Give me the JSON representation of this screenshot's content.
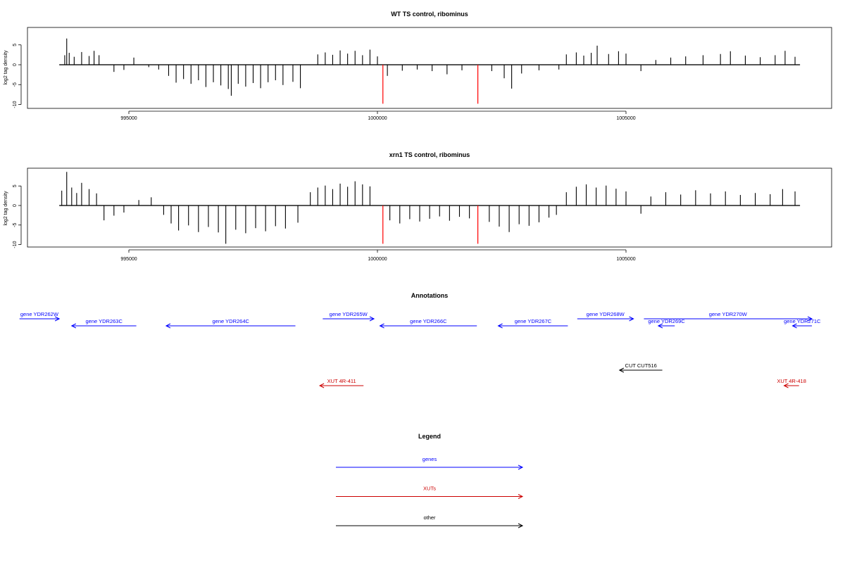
{
  "chart_data": [
    {
      "type": "bar",
      "title": "WT TS control, ribominus",
      "xlabel": "",
      "ylabel": "log2 tag density",
      "xlim": [
        992600,
        1008900
      ],
      "ylim": [
        -10,
        9.5
      ],
      "x_ticks": [
        995000,
        1000000,
        1005000
      ],
      "x_tick_labels": [
        "995000",
        "1000000",
        "1005000"
      ],
      "y_ticks": [
        -10,
        -5,
        0,
        5
      ],
      "y_tick_labels": [
        "-10",
        "-5",
        "0",
        "5"
      ],
      "grid": false,
      "legend": "none",
      "baseline_range": [
        993600,
        1008500
      ],
      "series": [
        {
          "color": "#000000",
          "values": [
            [
              993710,
              2.4
            ],
            [
              993750,
              6.6
            ],
            [
              993800,
              3.0
            ],
            [
              993900,
              2.0
            ],
            [
              994050,
              3.2
            ],
            [
              994200,
              2.2
            ],
            [
              994300,
              3.5
            ],
            [
              994400,
              2.4
            ],
            [
              994700,
              -1.8
            ],
            [
              994900,
              -1.3
            ],
            [
              995100,
              1.8
            ],
            [
              995400,
              -0.6
            ],
            [
              995600,
              -1.2
            ],
            [
              995800,
              -2.8
            ],
            [
              995950,
              -4.5
            ],
            [
              996100,
              -3.6
            ],
            [
              996250,
              -4.8
            ],
            [
              996400,
              -3.9
            ],
            [
              996550,
              -5.6
            ],
            [
              996700,
              -4.4
            ],
            [
              996850,
              -5.2
            ],
            [
              997000,
              -6.1
            ],
            [
              997060,
              -7.8
            ],
            [
              997200,
              -4.8
            ],
            [
              997350,
              -5.5
            ],
            [
              997500,
              -4.6
            ],
            [
              997650,
              -5.9
            ],
            [
              997800,
              -4.4
            ],
            [
              997950,
              -3.9
            ],
            [
              998100,
              -5.1
            ],
            [
              998300,
              -4.3
            ],
            [
              998450,
              -5.9
            ],
            [
              998800,
              2.6
            ],
            [
              998950,
              3.1
            ],
            [
              999100,
              2.5
            ],
            [
              999250,
              3.6
            ],
            [
              999400,
              2.8
            ],
            [
              999550,
              3.5
            ],
            [
              999700,
              2.4
            ],
            [
              999850,
              3.8
            ],
            [
              1000000,
              2.1
            ],
            [
              1000200,
              -2.8
            ],
            [
              1000500,
              -1.5
            ],
            [
              1000800,
              -1.2
            ],
            [
              1001100,
              -1.6
            ],
            [
              1001400,
              -2.4
            ],
            [
              1001700,
              -1.4
            ],
            [
              1002300,
              -1.6
            ],
            [
              1002550,
              -3.4
            ],
            [
              1002700,
              -6.0
            ],
            [
              1002900,
              -2.2
            ],
            [
              1003250,
              -1.4
            ],
            [
              1003650,
              -1.2
            ],
            [
              1003800,
              2.6
            ],
            [
              1004000,
              3.1
            ],
            [
              1004150,
              2.3
            ],
            [
              1004300,
              3.0
            ],
            [
              1004420,
              4.8
            ],
            [
              1004650,
              2.7
            ],
            [
              1004850,
              3.4
            ],
            [
              1005000,
              2.8
            ],
            [
              1005300,
              -1.6
            ],
            [
              1005600,
              1.2
            ],
            [
              1005900,
              1.8
            ],
            [
              1006200,
              2.1
            ],
            [
              1006550,
              2.4
            ],
            [
              1006900,
              2.7
            ],
            [
              1007100,
              3.4
            ],
            [
              1007400,
              2.3
            ],
            [
              1007700,
              1.9
            ],
            [
              1008000,
              2.4
            ],
            [
              1008200,
              3.5
            ],
            [
              1008400,
              2.0
            ]
          ]
        },
        {
          "color": "#ff0000",
          "values": [
            [
              1000110,
              -9.8
            ],
            [
              1002020,
              -9.8
            ]
          ]
        }
      ]
    },
    {
      "type": "bar",
      "title": "xrn1 TS control, ribominus",
      "xlabel": "",
      "ylabel": "log2 tag density",
      "xlim": [
        992600,
        1008900
      ],
      "ylim": [
        -10,
        9.5
      ],
      "x_ticks": [
        995000,
        1000000,
        1005000
      ],
      "x_tick_labels": [
        "995000",
        "1000000",
        "1005000"
      ],
      "y_ticks": [
        -10,
        -5,
        0,
        5
      ],
      "y_tick_labels": [
        "-10",
        "-5",
        "0",
        "5"
      ],
      "grid": false,
      "legend": "none",
      "baseline_range": [
        993600,
        1008500
      ],
      "series": [
        {
          "color": "#000000",
          "values": [
            [
              993650,
              3.8
            ],
            [
              993750,
              8.6
            ],
            [
              993850,
              4.6
            ],
            [
              993950,
              3.2
            ],
            [
              994050,
              5.8
            ],
            [
              994200,
              4.2
            ],
            [
              994350,
              3.1
            ],
            [
              994500,
              -3.8
            ],
            [
              994700,
              -2.6
            ],
            [
              994900,
              -1.8
            ],
            [
              995200,
              1.4
            ],
            [
              995450,
              2.1
            ],
            [
              995700,
              -2.4
            ],
            [
              995850,
              -4.6
            ],
            [
              996000,
              -6.4
            ],
            [
              996200,
              -5.1
            ],
            [
              996400,
              -6.8
            ],
            [
              996600,
              -5.5
            ],
            [
              996800,
              -6.9
            ],
            [
              996950,
              -9.8
            ],
            [
              997150,
              -6.2
            ],
            [
              997350,
              -7.1
            ],
            [
              997550,
              -5.8
            ],
            [
              997750,
              -6.6
            ],
            [
              997950,
              -5.3
            ],
            [
              998150,
              -5.9
            ],
            [
              998400,
              -4.4
            ],
            [
              998650,
              3.4
            ],
            [
              998800,
              4.6
            ],
            [
              998950,
              5.1
            ],
            [
              999100,
              4.2
            ],
            [
              999250,
              5.6
            ],
            [
              999400,
              4.8
            ],
            [
              999550,
              6.2
            ],
            [
              999700,
              5.4
            ],
            [
              999850,
              4.9
            ],
            [
              1000250,
              -3.8
            ],
            [
              1000450,
              -4.6
            ],
            [
              1000650,
              -3.5
            ],
            [
              1000850,
              -4.1
            ],
            [
              1001050,
              -3.4
            ],
            [
              1001250,
              -2.8
            ],
            [
              1001450,
              -3.9
            ],
            [
              1001650,
              -2.9
            ],
            [
              1001850,
              -3.3
            ],
            [
              1002250,
              -4.2
            ],
            [
              1002450,
              -5.4
            ],
            [
              1002650,
              -6.8
            ],
            [
              1002850,
              -4.8
            ],
            [
              1003050,
              -5.2
            ],
            [
              1003250,
              -4.3
            ],
            [
              1003450,
              -3.1
            ],
            [
              1003600,
              -2.4
            ],
            [
              1003800,
              3.4
            ],
            [
              1004000,
              4.8
            ],
            [
              1004200,
              5.4
            ],
            [
              1004400,
              4.6
            ],
            [
              1004600,
              5.1
            ],
            [
              1004800,
              4.3
            ],
            [
              1005000,
              3.6
            ],
            [
              1005300,
              -2.1
            ],
            [
              1005500,
              2.3
            ],
            [
              1005800,
              3.4
            ],
            [
              1006100,
              2.8
            ],
            [
              1006400,
              3.9
            ],
            [
              1006700,
              3.1
            ],
            [
              1007000,
              3.6
            ],
            [
              1007300,
              2.7
            ],
            [
              1007600,
              3.2
            ],
            [
              1007900,
              2.9
            ],
            [
              1008150,
              4.2
            ],
            [
              1008400,
              3.6
            ]
          ]
        },
        {
          "color": "#ff0000",
          "values": [
            [
              1000110,
              -9.8
            ],
            [
              1002020,
              -9.8
            ]
          ]
        }
      ]
    }
  ],
  "annotations": {
    "title": "Annotations",
    "items": [
      {
        "label": "gene YDR262W",
        "start": 992800,
        "end": 993600,
        "strand": "+",
        "row": 0,
        "color": "#0000ff"
      },
      {
        "label": "gene YDR263C",
        "start": 993850,
        "end": 995150,
        "strand": "-",
        "row": 1,
        "color": "#0000ff"
      },
      {
        "label": "gene YDR264C",
        "start": 995750,
        "end": 998350,
        "strand": "-",
        "row": 1,
        "color": "#0000ff"
      },
      {
        "label": "gene YDR265W",
        "start": 998900,
        "end": 999930,
        "strand": "+",
        "row": 0,
        "color": "#0000ff"
      },
      {
        "label": "gene YDR266C",
        "start": 1000050,
        "end": 1002000,
        "strand": "-",
        "row": 1,
        "color": "#0000ff"
      },
      {
        "label": "gene YDR267C",
        "start": 1002430,
        "end": 1003830,
        "strand": "-",
        "row": 1,
        "color": "#0000ff"
      },
      {
        "label": "gene YDR268W",
        "start": 1004020,
        "end": 1005150,
        "strand": "+",
        "row": 0,
        "color": "#0000ff"
      },
      {
        "label": "gene YDR269C",
        "start": 1005650,
        "end": 1005980,
        "strand": "-",
        "row": 1,
        "color": "#0000ff"
      },
      {
        "label": "gene YDR270W",
        "start": 1005360,
        "end": 1008740,
        "strand": "+",
        "row": 0,
        "color": "#0000ff"
      },
      {
        "label": "gene YDR271C",
        "start": 1008350,
        "end": 1008740,
        "strand": "-",
        "row": 1,
        "color": "#0000ff"
      },
      {
        "label": "CUT CUT516",
        "start": 1004870,
        "end": 1005730,
        "strand": "-",
        "row": 2,
        "color": "#000000"
      },
      {
        "label": "XUT 4R-411",
        "start": 998840,
        "end": 999720,
        "strand": "-",
        "row": 3,
        "color": "#cc0000"
      },
      {
        "label": "XUT 4R-418",
        "start": 1008180,
        "end": 1008480,
        "strand": "-",
        "row": 3,
        "color": "#cc0000"
      }
    ]
  },
  "legend": {
    "title": "Legend",
    "items": [
      {
        "label": "genes",
        "color": "#0000ff"
      },
      {
        "label": "XUTs",
        "color": "#cc0000"
      },
      {
        "label": "other",
        "color": "#000000"
      }
    ]
  }
}
